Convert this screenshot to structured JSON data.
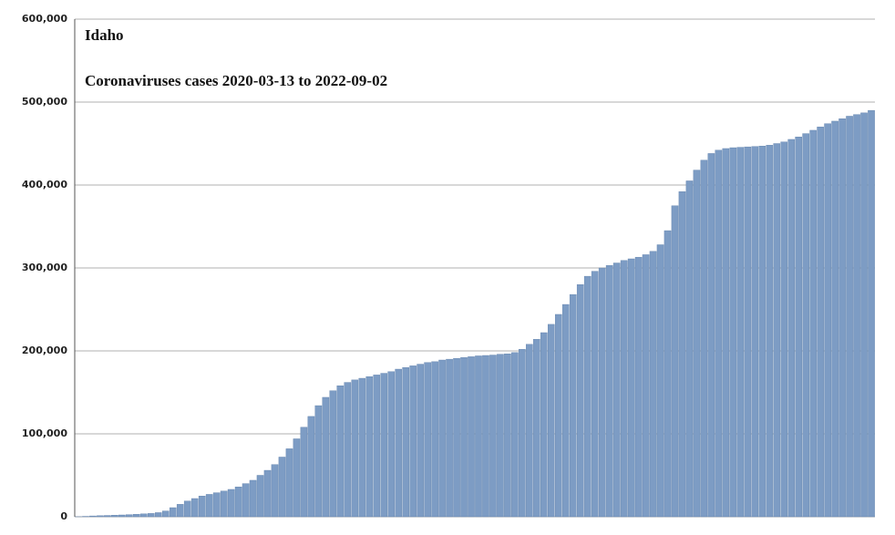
{
  "chart_data": {
    "type": "bar",
    "title": "Idaho",
    "subtitle": "Coronaviruses cases 2020-03-13 to 2022-09-02",
    "color": "#7d9cc4",
    "grid": true,
    "ylim": [
      0,
      600000
    ],
    "yticks": [
      {
        "value": 0,
        "label": "0"
      },
      {
        "value": 100000,
        "label": "100,000"
      },
      {
        "value": 200000,
        "label": "200,000"
      },
      {
        "value": 300000,
        "label": "300,000"
      },
      {
        "value": 400000,
        "label": "400,000"
      },
      {
        "value": 500000,
        "label": "500,000"
      },
      {
        "value": 600000,
        "label": "600,000"
      }
    ],
    "values": [
      100,
      500,
      1000,
      1300,
      1600,
      1900,
      2200,
      2600,
      3000,
      3500,
      4000,
      5000,
      7000,
      11000,
      15000,
      19000,
      22000,
      25000,
      27000,
      29000,
      31000,
      33000,
      36000,
      40000,
      44000,
      50000,
      56000,
      63000,
      72000,
      82000,
      94000,
      108000,
      121000,
      134000,
      144000,
      152000,
      158000,
      162000,
      165000,
      167000,
      169000,
      171000,
      173000,
      175000,
      178000,
      180000,
      182000,
      184000,
      186000,
      187000,
      189000,
      190000,
      191000,
      192000,
      193000,
      194000,
      194500,
      195000,
      196000,
      196500,
      198000,
      202000,
      208000,
      214000,
      222000,
      232000,
      244000,
      256000,
      268000,
      280000,
      290000,
      296000,
      300000,
      303000,
      306000,
      309000,
      311000,
      313000,
      316000,
      320000,
      328000,
      345000,
      375000,
      392000,
      405000,
      418000,
      430000,
      438000,
      442000,
      444000,
      445000,
      445500,
      446000,
      446500,
      447000,
      448000,
      450000,
      452000,
      455000,
      458000,
      462000,
      466000,
      470000,
      474000,
      477000,
      480000,
      483000,
      485000,
      487000,
      490000
    ]
  }
}
